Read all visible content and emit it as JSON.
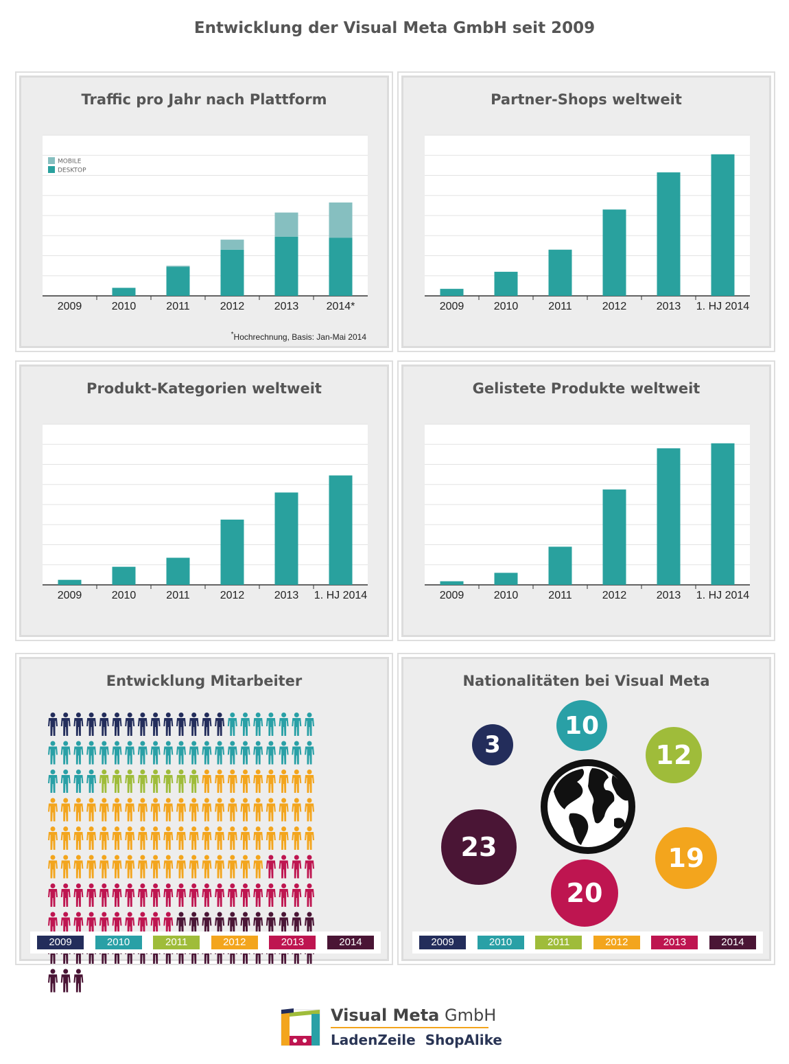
{
  "title": "Entwicklung der Visual Meta GmbH seit 2009",
  "colors": {
    "teal": "#29a19e",
    "mobile": "#86bfc0",
    "y2009": "#232d5b",
    "y2010": "#29a0a6",
    "y2011": "#9fbc3a",
    "y2012": "#f3a51d",
    "y2013": "#be1550",
    "y2014": "#4a1535"
  },
  "chart_data": [
    {
      "type": "bar",
      "stacked": true,
      "title": "Traffic pro Jahr nach Plattform",
      "categories": [
        "2009",
        "2010",
        "2011",
        "2012",
        "2013",
        "2014*"
      ],
      "series": [
        {
          "name": "DESKTOP",
          "values": [
            0,
            0.4,
            1.45,
            2.3,
            2.95,
            2.9
          ]
        },
        {
          "name": "MOBILE",
          "values": [
            0,
            0,
            0.05,
            0.5,
            1.2,
            1.75
          ]
        }
      ],
      "ylim": [
        0,
        8
      ],
      "grid": true,
      "legend": "top-left",
      "footnote_mark": "*",
      "footnote": "Hochrechnung, Basis: Jan-Mai 2014"
    },
    {
      "type": "bar",
      "title": "Partner-Shops weltweit",
      "categories": [
        "2009",
        "2010",
        "2011",
        "2012",
        "2013",
        "1. HJ 2014"
      ],
      "values": [
        0.35,
        1.2,
        2.3,
        4.3,
        6.15,
        7.05
      ],
      "ylim": [
        0,
        8
      ],
      "grid": true
    },
    {
      "type": "bar",
      "title": "Produkt-Kategorien weltweit",
      "categories": [
        "2009",
        "2010",
        "2011",
        "2012",
        "2013",
        "1. HJ 2014"
      ],
      "values": [
        0.25,
        0.9,
        1.35,
        3.25,
        4.6,
        5.45
      ],
      "ylim": [
        0,
        8
      ],
      "grid": true
    },
    {
      "type": "bar",
      "title": "Gelistete Produkte weltweit",
      "categories": [
        "2009",
        "2010",
        "2011",
        "2012",
        "2013",
        "1. HJ 2014"
      ],
      "values": [
        0.18,
        0.6,
        1.9,
        4.75,
        6.8,
        7.05
      ],
      "ylim": [
        0,
        8
      ],
      "grid": true
    }
  ],
  "employees": {
    "title": "Entwicklung Mitarbeiter",
    "per_row": 21,
    "counts": [
      {
        "year": "2009",
        "count": 14
      },
      {
        "year": "2010",
        "count": 32
      },
      {
        "year": "2011",
        "count": 8
      },
      {
        "year": "2012",
        "count": 68
      },
      {
        "year": "2013",
        "count": 35
      },
      {
        "year": "2014",
        "count": 35
      }
    ]
  },
  "nationalities": {
    "title": "Nationalitäten bei Visual Meta",
    "circles": [
      {
        "year": "2009",
        "value": "3"
      },
      {
        "year": "2010",
        "value": "10"
      },
      {
        "year": "2011",
        "value": "12"
      },
      {
        "year": "2012",
        "value": "19"
      },
      {
        "year": "2013",
        "value": "20"
      },
      {
        "year": "2014",
        "value": "23"
      }
    ],
    "globe_icon": "globe-icon"
  },
  "year_legend": [
    "2009",
    "2010",
    "2011",
    "2012",
    "2013",
    "2014"
  ],
  "logo": {
    "company_bold": "Visual Meta",
    "company_light": "GmbH",
    "brand1": "LadenZeile",
    "brand2": "ShopAlike"
  }
}
